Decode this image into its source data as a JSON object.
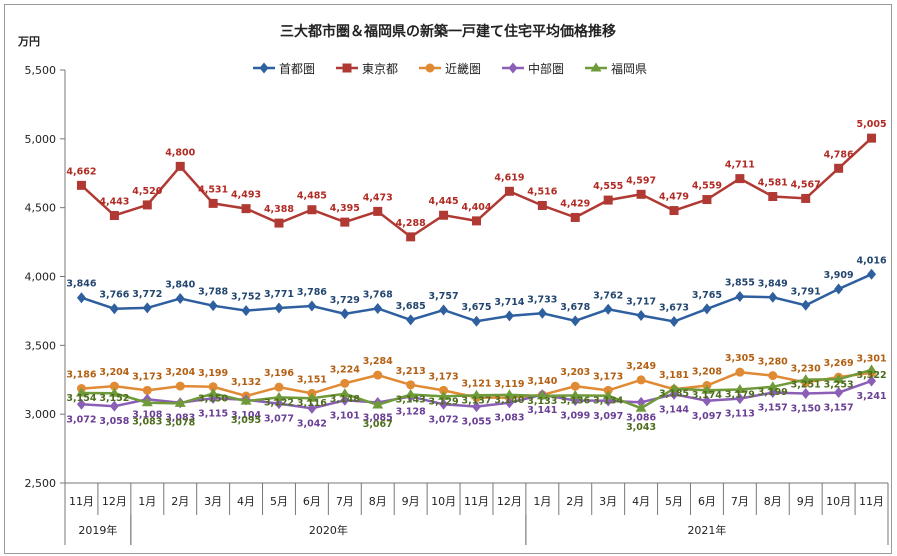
{
  "chart_data": {
    "type": "line",
    "title": "三大都市圏＆福岡県の新築一戸建て住宅平均価格推移",
    "ylabel": "万円",
    "ylim": [
      2500,
      5500
    ],
    "yticks": [
      "2,500",
      "3,000",
      "3,500",
      "4,000",
      "4,500",
      "5,000",
      "5,500"
    ],
    "grid": false,
    "legend": "top",
    "categories": [
      "11月",
      "12月",
      "1月",
      "2月",
      "3月",
      "4月",
      "5月",
      "6月",
      "7月",
      "8月",
      "9月",
      "10月",
      "11月",
      "12月",
      "1月",
      "2月",
      "3月",
      "4月",
      "5月",
      "6月",
      "7月",
      "8月",
      "9月",
      "10月",
      "11月"
    ],
    "years": [
      {
        "label": "2019年",
        "start": 0,
        "end": 1
      },
      {
        "label": "2020年",
        "start": 2,
        "end": 13
      },
      {
        "label": "2021年",
        "start": 14,
        "end": 24
      }
    ],
    "series": [
      {
        "name": "首都圏",
        "color": "#2e5f9e",
        "marker": "diamond",
        "values": [
          3846,
          3766,
          3772,
          3840,
          3788,
          3752,
          3771,
          3786,
          3729,
          3768,
          3685,
          3757,
          3675,
          3714,
          3733,
          3678,
          3762,
          3717,
          3673,
          3765,
          3855,
          3849,
          3791,
          3909,
          4016
        ],
        "labels": [
          "3,846",
          "3,766",
          "3,772",
          "3,840",
          "3,788",
          "3,752",
          "3,771",
          "3,786",
          "3,729",
          "3,768",
          "3,685",
          "3,757",
          "3,675",
          "3,714",
          "3,733",
          "3,678",
          "3,762",
          "3,717",
          "3,673",
          "3,765",
          "3,855",
          "3,849",
          "3,791",
          "3,909",
          "4,016"
        ]
      },
      {
        "name": "東京都",
        "color": "#b03a33",
        "marker": "square",
        "values": [
          4662,
          4443,
          4520,
          4800,
          4531,
          4493,
          4388,
          4485,
          4395,
          4473,
          4288,
          4445,
          4404,
          4619,
          4516,
          4429,
          4555,
          4597,
          4479,
          4559,
          4711,
          4581,
          4567,
          4786,
          5005
        ],
        "labels": [
          "4,662",
          "4,443",
          "4,520",
          "4,800",
          "4,531",
          "4,493",
          "4,388",
          "4,485",
          "4,395",
          "4,473",
          "4,288",
          "4,445",
          "4,404",
          "4,619",
          "4,516",
          "4,429",
          "4,555",
          "4,597",
          "4,479",
          "4,559",
          "4,711",
          "4,581",
          "4,567",
          "4,786",
          "5,005"
        ]
      },
      {
        "name": "近畿圏",
        "color": "#e08a34",
        "marker": "circle",
        "values": [
          3186,
          3204,
          3173,
          3204,
          3199,
          3132,
          3196,
          3151,
          3224,
          3284,
          3213,
          3173,
          3121,
          3119,
          3140,
          3203,
          3173,
          3249,
          3181,
          3208,
          3305,
          3280,
          3230,
          3269,
          3301
        ],
        "labels": [
          "3,186",
          "3,204",
          "3,173",
          "3,204",
          "3,199",
          "3,132",
          "3,196",
          "3,151",
          "3,224",
          "3,284",
          "3,213",
          "3,173",
          "3,121",
          "3,119",
          "3,140",
          "3,203",
          "3,173",
          "3,249",
          "3,181",
          "3,208",
          "3,305",
          "3,280",
          "3,230",
          "3,269",
          "3,301"
        ]
      },
      {
        "name": "中部圏",
        "color": "#8b5fb5",
        "marker": "diamond",
        "values": [
          3072,
          3058,
          3108,
          3083,
          3115,
          3104,
          3077,
          3042,
          3101,
          3085,
          3128,
          3072,
          3055,
          3083,
          3141,
          3099,
          3097,
          3086,
          3144,
          3097,
          3113,
          3157,
          3150,
          3157,
          3241
        ],
        "labels": [
          "3,072",
          "3,058",
          "3,108",
          "3,083",
          "3,115",
          "3,104",
          "3,077",
          "3,042",
          "3,101",
          "3,085",
          "3,128",
          "3,072",
          "3,055",
          "3,083",
          "3,141",
          "3,099",
          "3,097",
          "3,086",
          "3,144",
          "3,097",
          "3,113",
          "3,157",
          "3,150",
          "3,157",
          "3,241"
        ]
      },
      {
        "name": "福岡県",
        "color": "#6f9a3a",
        "marker": "triangle",
        "values": [
          3154,
          3152,
          3083,
          3078,
          3150,
          3095,
          3122,
          3116,
          3148,
          3067,
          3143,
          3129,
          3137,
          3140,
          3133,
          3136,
          3134,
          3043,
          3185,
          3174,
          3179,
          3199,
          3251,
          3253,
          3322
        ],
        "labels": [
          "3,154",
          "3,152",
          "3,083",
          "3,078",
          "3,150",
          "3,095",
          "3,122",
          "3,116",
          "3,148",
          "3,067",
          "3,143",
          "3,129",
          "3,137",
          "3,140",
          "3,133",
          "3,136",
          "3,134",
          "3,043",
          "3,185",
          "3,174",
          "3,179",
          "3,199",
          "3,251",
          "3,253",
          "3,322"
        ]
      }
    ]
  }
}
